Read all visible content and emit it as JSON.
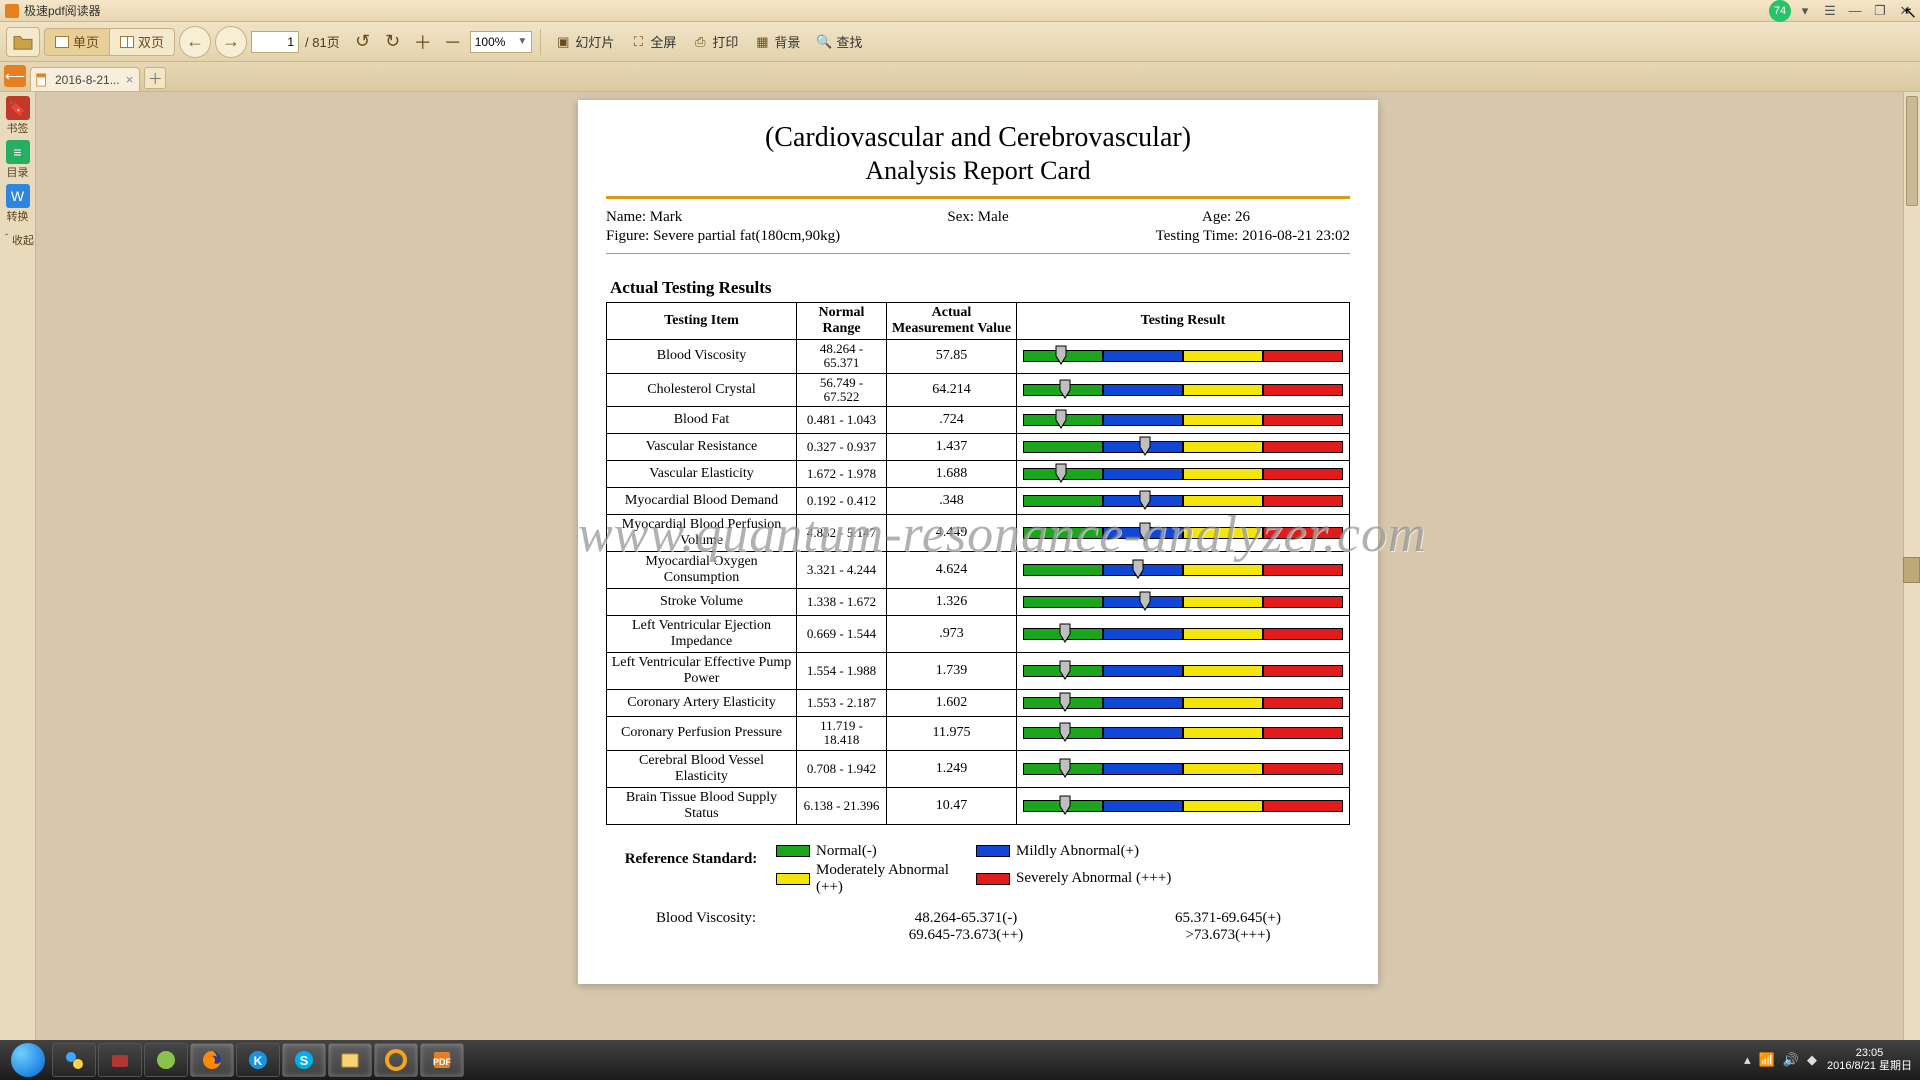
{
  "app": {
    "title": "极速pdf阅读器",
    "badge": "74"
  },
  "toolbar": {
    "single_page": "单页",
    "double_page": "双页",
    "page_current": "1",
    "page_total": "/ 81页",
    "zoom_value": "100%",
    "slides": "幻灯片",
    "fullscreen": "全屏",
    "print": "打印",
    "background": "背景",
    "find": "查找"
  },
  "tab": {
    "label": "2016-8-21..."
  },
  "sidebar": {
    "bookmarks": "书签",
    "toc": "目录",
    "convert": "转换",
    "collapse": "＾收起"
  },
  "watermark": "www.quantum-resonance-analyzer.com",
  "report": {
    "title1": "(Cardiovascular and Cerebrovascular)",
    "title2": "Analysis Report Card",
    "name_label": "Name: ",
    "name": "Mark",
    "sex_label": "Sex: ",
    "sex": "Male",
    "age_label": "Age: ",
    "age": "26",
    "figure_label": "Figure: ",
    "figure": "Severe partial fat(180cm,90kg)",
    "testtime_label": "Testing Time: ",
    "testtime": "2016-08-21 23:02",
    "section": "Actual Testing Results",
    "headers": {
      "item": "Testing Item",
      "range": "Normal Range",
      "value": "Actual Measurement Value",
      "result": "Testing Result"
    },
    "rows": [
      {
        "item": "Blood Viscosity",
        "lo": "48.264",
        "hi": "65.371",
        "val": "57.85",
        "pos": 12
      },
      {
        "item": "Cholesterol Crystal",
        "lo": "56.749",
        "hi": "67.522",
        "val": "64.214",
        "pos": 13
      },
      {
        "item": "Blood Fat",
        "lo": "0.481",
        "hi": "1.043",
        "val": ".724",
        "pos": 12
      },
      {
        "item": "Vascular Resistance",
        "lo": "0.327",
        "hi": "0.937",
        "val": "1.437",
        "pos": 38
      },
      {
        "item": "Vascular Elasticity",
        "lo": "1.672",
        "hi": "1.978",
        "val": "1.688",
        "pos": 12
      },
      {
        "item": "Myocardial Blood Demand",
        "lo": "0.192",
        "hi": "0.412",
        "val": ".348",
        "pos": 38
      },
      {
        "item": "Myocardial Blood Perfusion Volume",
        "lo": "4.832",
        "hi": "5.147",
        "val": "4.449",
        "pos": 38
      },
      {
        "item": "Myocardial Oxygen Consumption",
        "lo": "3.321",
        "hi": "4.244",
        "val": "4.624",
        "pos": 36
      },
      {
        "item": "Stroke Volume",
        "lo": "1.338",
        "hi": "1.672",
        "val": "1.326",
        "pos": 38
      },
      {
        "item": "Left Ventricular Ejection Impedance",
        "lo": "0.669",
        "hi": "1.544",
        "val": ".973",
        "pos": 13
      },
      {
        "item": "Left Ventricular Effective Pump Power",
        "lo": "1.554",
        "hi": "1.988",
        "val": "1.739",
        "pos": 13
      },
      {
        "item": "Coronary Artery Elasticity",
        "lo": "1.553",
        "hi": "2.187",
        "val": "1.602",
        "pos": 13
      },
      {
        "item": "Coronary Perfusion Pressure",
        "lo": "11.719",
        "hi": "18.418",
        "val": "11.975",
        "pos": 13
      },
      {
        "item": "Cerebral Blood Vessel Elasticity",
        "lo": "0.708",
        "hi": "1.942",
        "val": "1.249",
        "pos": 13
      },
      {
        "item": "Brain Tissue Blood Supply Status",
        "lo": "6.138",
        "hi": "21.396",
        "val": "10.47",
        "pos": 13
      }
    ],
    "legend_label": "Reference Standard:",
    "legend": {
      "normal": "Normal(-)",
      "mild": "Mildly Abnormal(+)",
      "moderate": "Moderately Abnormal (++)",
      "severe": "Severely Abnormal (+++)"
    },
    "colors": {
      "green": "#1aa51a",
      "blue": "#1147d6",
      "yellow": "#f4e50a",
      "red": "#e21a1a"
    },
    "range_lines": [
      {
        "name": "Blood Viscosity:",
        "a": "48.264-65.371(-)",
        "b": "65.371-69.645(+)"
      },
      {
        "name": "",
        "a": "69.645-73.673(++)",
        "b": ">73.673(+++)"
      }
    ]
  },
  "systray": {
    "time": "23:05",
    "date": "2016/8/21",
    "day": "星期日"
  }
}
